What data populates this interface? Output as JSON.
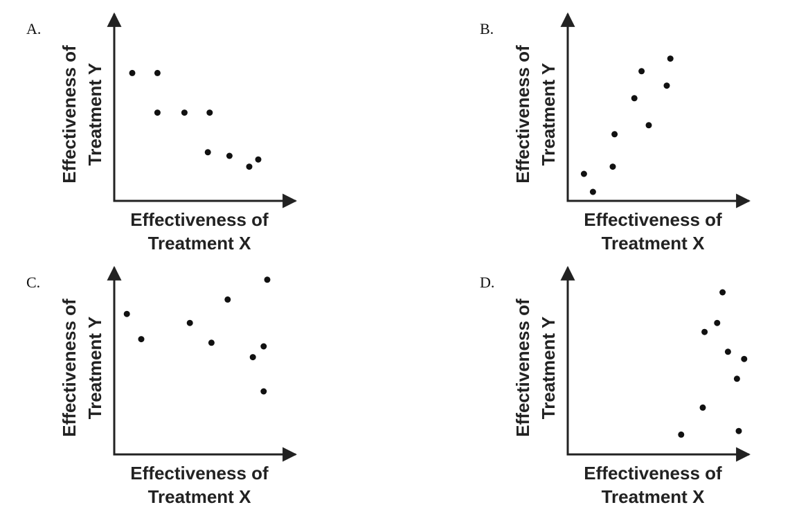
{
  "chart_data": [
    {
      "type": "scatter",
      "title": "A.",
      "xlabel": [
        "Effectiveness of",
        "Treatment X"
      ],
      "ylabel": [
        "Effectiveness of",
        "Treatment Y"
      ],
      "color": "#111111",
      "x": [
        1.0,
        2.4,
        2.4,
        3.9,
        5.3,
        5.2,
        6.4,
        7.5,
        8.0
      ],
      "y": [
        7.1,
        7.1,
        4.9,
        4.9,
        4.9,
        2.7,
        2.5,
        1.9,
        2.3
      ],
      "xlim": [
        0,
        10
      ],
      "ylim": [
        0,
        10
      ]
    },
    {
      "type": "scatter",
      "title": "B.",
      "xlabel": [
        "Effectiveness of",
        "Treatment X"
      ],
      "ylabel": [
        "Effectiveness of",
        "Treatment Y"
      ],
      "color": "#111111",
      "x": [
        0.9,
        1.4,
        2.5,
        2.6,
        3.7,
        4.1,
        4.5,
        5.5,
        5.7
      ],
      "y": [
        1.5,
        0.5,
        1.9,
        3.7,
        5.7,
        7.2,
        4.2,
        6.4,
        7.9
      ],
      "xlim": [
        0,
        10
      ],
      "ylim": [
        0,
        10
      ]
    },
    {
      "type": "scatter",
      "title": "C.",
      "xlabel": [
        "Effectiveness of",
        "Treatment X"
      ],
      "ylabel": [
        "Effectiveness of",
        "Treatment Y"
      ],
      "color": "#111111",
      "x": [
        0.7,
        1.5,
        4.2,
        5.4,
        6.3,
        7.7,
        8.3,
        8.3,
        8.5
      ],
      "y": [
        7.8,
        6.4,
        7.3,
        6.2,
        8.6,
        5.4,
        6.0,
        3.5,
        9.7
      ],
      "xlim": [
        0,
        10
      ],
      "ylim": [
        0,
        10
      ]
    },
    {
      "type": "scatter",
      "title": "D.",
      "xlabel": [
        "Effectiveness of",
        "Treatment X"
      ],
      "ylabel": [
        "Effectiveness of",
        "Treatment Y"
      ],
      "color": "#111111",
      "x": [
        6.3,
        7.5,
        7.6,
        8.3,
        8.6,
        8.9,
        9.4,
        9.8,
        9.5
      ],
      "y": [
        1.1,
        2.6,
        6.8,
        7.3,
        9.0,
        5.7,
        4.2,
        5.3,
        1.3
      ],
      "xlim": [
        0,
        10
      ],
      "ylim": [
        0,
        10
      ]
    }
  ]
}
